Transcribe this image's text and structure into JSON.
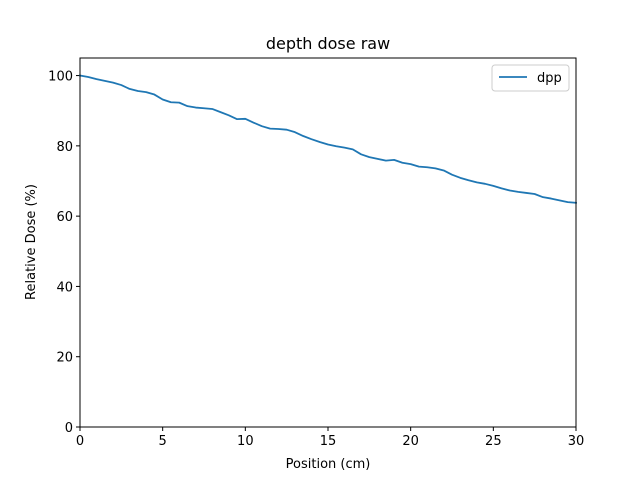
{
  "chart_data": {
    "type": "line",
    "title": "depth dose raw",
    "xlabel": "Position (cm)",
    "ylabel": "Relative Dose (%)",
    "xlim": [
      0,
      30
    ],
    "ylim": [
      0,
      105
    ],
    "xticks": [
      0,
      5,
      10,
      15,
      20,
      25,
      30
    ],
    "yticks": [
      0,
      20,
      40,
      60,
      80,
      100
    ],
    "grid": false,
    "legend": "top-right",
    "series": [
      {
        "name": "dpp",
        "color": "#1f77b4",
        "x": [
          0,
          0.5,
          1,
          1.5,
          2,
          2.5,
          3,
          3.5,
          4,
          4.5,
          5,
          5.5,
          6,
          6.5,
          7,
          7.5,
          8,
          8.5,
          9,
          9.5,
          10,
          10.5,
          11,
          11.5,
          12,
          12.5,
          13,
          13.5,
          14,
          14.5,
          15,
          15.5,
          16,
          16.5,
          17,
          17.5,
          18,
          18.5,
          19,
          19.5,
          20,
          20.5,
          21,
          21.5,
          22,
          22.5,
          23,
          23.5,
          24,
          24.5,
          25,
          25.5,
          26,
          26.5,
          27,
          27.5,
          28,
          28.5,
          29,
          29.5,
          30
        ],
        "y": [
          100,
          99.6,
          99.0,
          98.5,
          98.0,
          97.3,
          96.2,
          95.6,
          95.3,
          94.6,
          93.2,
          92.4,
          92.3,
          91.3,
          90.9,
          90.7,
          90.5,
          89.6,
          88.7,
          87.6,
          87.7,
          86.6,
          85.6,
          84.9,
          84.8,
          84.6,
          83.9,
          82.8,
          81.9,
          81.1,
          80.4,
          79.9,
          79.5,
          79.0,
          77.6,
          76.8,
          76.3,
          75.8,
          76.0,
          75.2,
          74.8,
          74.1,
          73.9,
          73.6,
          73.0,
          71.8,
          70.9,
          70.2,
          69.6,
          69.2,
          68.6,
          67.9,
          67.3,
          66.9,
          66.6,
          66.3,
          65.4,
          65.0,
          64.5,
          64.0,
          63.8
        ]
      }
    ]
  }
}
